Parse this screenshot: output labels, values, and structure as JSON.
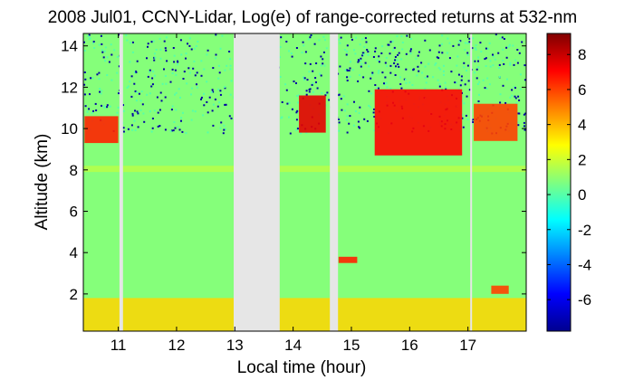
{
  "chart_data": {
    "type": "heatmap",
    "title": "2008 Jul01, CCNY-Lidar, Log(e) of range-corrected returns at 532-nm",
    "xlabel": "Local time (hour)",
    "ylabel": "Altitude (km)",
    "xlim": [
      10.4,
      18.0
    ],
    "ylim": [
      0.2,
      14.6
    ],
    "x_ticks": [
      11,
      12,
      13,
      14,
      15,
      16,
      17
    ],
    "y_ticks": [
      2,
      4,
      6,
      8,
      10,
      12,
      14
    ],
    "colorbar": {
      "range": [
        -7.8,
        9.2
      ],
      "ticks": [
        8,
        6,
        4,
        2,
        0,
        -2,
        -4,
        -6
      ],
      "colormap": "jet"
    },
    "background_value": 0.8,
    "data_gaps_hours": [
      [
        11.02,
        11.08
      ],
      [
        12.98,
        13.77
      ],
      [
        14.63,
        14.77
      ],
      [
        17.04,
        17.06
      ]
    ],
    "features": [
      {
        "kind": "boundary_layer",
        "x": [
          10.4,
          18.0
        ],
        "y": [
          0.2,
          1.8
        ],
        "value": 3.5
      },
      {
        "kind": "residual_layer",
        "x": [
          10.4,
          18.0
        ],
        "y": [
          7.9,
          8.2
        ],
        "value": 1.6
      },
      {
        "kind": "cloud",
        "x": [
          10.42,
          11.0
        ],
        "y": [
          9.3,
          10.6
        ],
        "value": 6.5
      },
      {
        "kind": "cloud",
        "x": [
          14.1,
          14.56
        ],
        "y": [
          9.8,
          11.6
        ],
        "value": 7.5
      },
      {
        "kind": "cloud",
        "x": [
          15.4,
          16.9
        ],
        "y": [
          8.7,
          11.9
        ],
        "value": 7.0
      },
      {
        "kind": "cloud",
        "x": [
          17.1,
          17.85
        ],
        "y": [
          9.4,
          11.2
        ],
        "value": 6.0
      },
      {
        "kind": "cloud",
        "x": [
          14.78,
          15.1
        ],
        "y": [
          3.5,
          3.8
        ],
        "value": 6.5
      },
      {
        "kind": "cloud",
        "x": [
          17.4,
          17.7
        ],
        "y": [
          2.0,
          2.4
        ],
        "value": 6.0
      }
    ]
  }
}
